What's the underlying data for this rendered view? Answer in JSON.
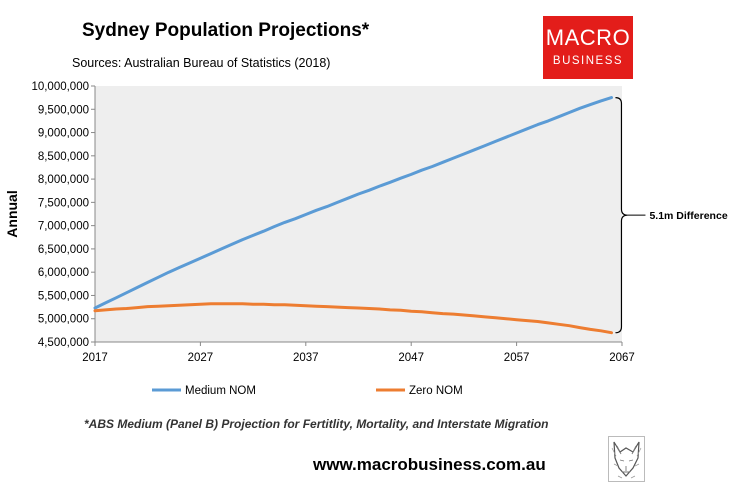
{
  "header": {
    "title": "Sydney Population Projections*",
    "subtitle": "Sources: Australian Bureau of Statistics (2018)"
  },
  "logo": {
    "line1": "MACRO",
    "line2": "BUSINESS",
    "color": "#e31d1a"
  },
  "footnote": "*ABS Medium (Panel B) Projection for Fertitlity, Mortality, and Interstate Migration",
  "website": "www.macrobusiness.com.au",
  "mascot_icon": "fox-sketch-icon",
  "chart_data": {
    "type": "line",
    "title": "Sydney Population Projections*",
    "ylabel": "Annual",
    "xlabel": "",
    "xlim": [
      2017,
      2067
    ],
    "ylim": [
      4500000,
      10000000
    ],
    "x_ticks": [
      2017,
      2027,
      2037,
      2047,
      2057,
      2067
    ],
    "y_ticks": [
      4500000,
      5000000,
      5500000,
      6000000,
      6500000,
      7000000,
      7500000,
      8000000,
      8500000,
      9000000,
      9500000,
      10000000
    ],
    "y_tick_labels": [
      "4,500,000",
      "5,000,000",
      "5,500,000",
      "6,000,000",
      "6,500,000",
      "7,000,000",
      "7,500,000",
      "8,000,000",
      "8,500,000",
      "9,000,000",
      "9,500,000",
      "10,000,000"
    ],
    "x_tick_labels": [
      "2017",
      "2027",
      "2037",
      "2047",
      "2057",
      "2067"
    ],
    "grid": false,
    "plot_background": "#eeeeee",
    "legend_position": "bottom",
    "series": [
      {
        "name": "Medium NOM",
        "color": "#5b9bd5",
        "x": [
          2017,
          2018,
          2019,
          2020,
          2021,
          2022,
          2023,
          2024,
          2025,
          2026,
          2027,
          2028,
          2029,
          2030,
          2031,
          2032,
          2033,
          2034,
          2035,
          2036,
          2037,
          2038,
          2039,
          2040,
          2041,
          2042,
          2043,
          2044,
          2045,
          2046,
          2047,
          2048,
          2049,
          2050,
          2051,
          2052,
          2053,
          2054,
          2055,
          2056,
          2057,
          2058,
          2059,
          2060,
          2061,
          2062,
          2063,
          2064,
          2065,
          2066
        ],
        "values": [
          5230000,
          5340000,
          5450000,
          5560000,
          5670000,
          5780000,
          5890000,
          6000000,
          6100000,
          6200000,
          6300000,
          6400000,
          6500000,
          6600000,
          6700000,
          6790000,
          6880000,
          6980000,
          7070000,
          7150000,
          7240000,
          7330000,
          7410000,
          7500000,
          7590000,
          7680000,
          7760000,
          7850000,
          7930000,
          8020000,
          8100000,
          8190000,
          8270000,
          8360000,
          8450000,
          8540000,
          8630000,
          8720000,
          8810000,
          8900000,
          8990000,
          9080000,
          9170000,
          9250000,
          9340000,
          9430000,
          9520000,
          9600000,
          9680000,
          9750000
        ]
      },
      {
        "name": "Zero NOM",
        "color": "#ed7d31",
        "x": [
          2017,
          2018,
          2019,
          2020,
          2021,
          2022,
          2023,
          2024,
          2025,
          2026,
          2027,
          2028,
          2029,
          2030,
          2031,
          2032,
          2033,
          2034,
          2035,
          2036,
          2037,
          2038,
          2039,
          2040,
          2041,
          2042,
          2043,
          2044,
          2045,
          2046,
          2047,
          2048,
          2049,
          2050,
          2051,
          2052,
          2053,
          2054,
          2055,
          2056,
          2057,
          2058,
          2059,
          2060,
          2061,
          2062,
          2063,
          2064,
          2065,
          2066
        ],
        "values": [
          5170000,
          5190000,
          5210000,
          5220000,
          5240000,
          5260000,
          5270000,
          5280000,
          5290000,
          5300000,
          5310000,
          5320000,
          5320000,
          5320000,
          5320000,
          5310000,
          5310000,
          5300000,
          5300000,
          5290000,
          5280000,
          5270000,
          5260000,
          5250000,
          5240000,
          5230000,
          5220000,
          5210000,
          5190000,
          5180000,
          5160000,
          5150000,
          5130000,
          5110000,
          5100000,
          5080000,
          5060000,
          5040000,
          5020000,
          5000000,
          4980000,
          4960000,
          4940000,
          4910000,
          4880000,
          4850000,
          4810000,
          4770000,
          4740000,
          4700000
        ]
      }
    ],
    "annotations": [
      {
        "text": "5.1m Difference",
        "type": "brace",
        "x": 2066,
        "y_from": 4700000,
        "y_to": 9750000
      }
    ]
  }
}
